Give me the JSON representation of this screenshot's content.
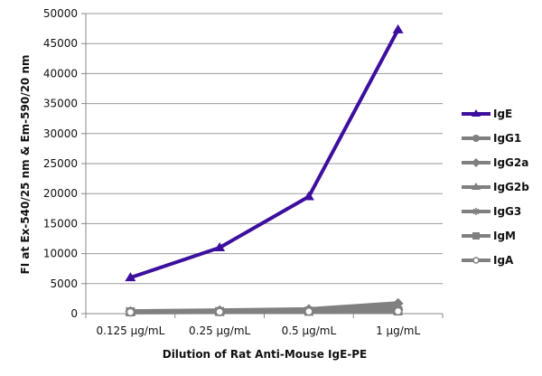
{
  "chart_data": {
    "type": "line",
    "title": "",
    "xlabel": "Dilution of Rat Anti-Mouse IgE-PE",
    "ylabel": "FI at Ex-540/25 nm & Em-590/20 nm",
    "categories": [
      "0.125 µg/mL",
      "0.25 µg/mL",
      "0.5 µg/mL",
      "1 µg/mL"
    ],
    "ylim": [
      0,
      50000
    ],
    "yticks": [
      0,
      5000,
      10000,
      15000,
      20000,
      25000,
      30000,
      35000,
      40000,
      45000,
      50000
    ],
    "grid": true,
    "legend_position": "right",
    "series": [
      {
        "name": "IgE",
        "color": "#3d0f9e",
        "marker": "triangle",
        "values": [
          6000,
          11000,
          19500,
          47300
        ]
      },
      {
        "name": "IgG1",
        "color": "#808080",
        "marker": "circle",
        "values": [
          300,
          350,
          450,
          600
        ]
      },
      {
        "name": "IgG2a",
        "color": "#808080",
        "marker": "diamond",
        "values": [
          350,
          500,
          700,
          1700
        ]
      },
      {
        "name": "IgG2b",
        "color": "#808080",
        "marker": "triangle",
        "values": [
          300,
          400,
          600,
          1200
        ]
      },
      {
        "name": "IgG3",
        "color": "#808080",
        "marker": "star",
        "values": [
          300,
          350,
          450,
          500
        ]
      },
      {
        "name": "IgM",
        "color": "#808080",
        "marker": "square",
        "values": [
          300,
          350,
          400,
          450
        ]
      },
      {
        "name": "IgA",
        "color": "#808080",
        "marker": "circle-open",
        "values": [
          250,
          300,
          350,
          400
        ]
      }
    ]
  }
}
